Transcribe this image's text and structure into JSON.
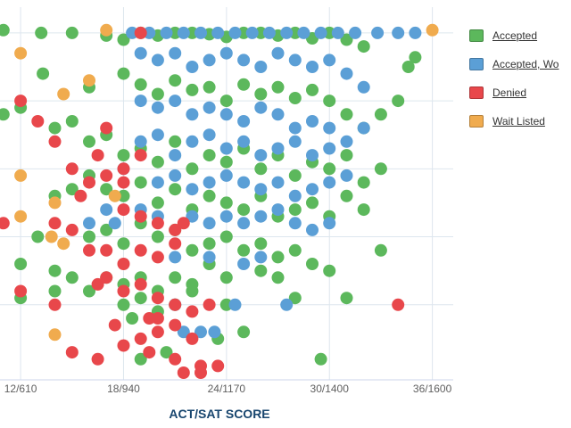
{
  "chart_data": {
    "type": "scatter",
    "title": "",
    "xlabel": "ACT/SAT SCORE",
    "ylabel": "",
    "x_ticks": [
      {
        "act": 12,
        "label": "12/610"
      },
      {
        "act": 18,
        "label": "18/940"
      },
      {
        "act": 24,
        "label": "24/1170"
      },
      {
        "act": 30,
        "label": "30/1400"
      },
      {
        "act": 36,
        "label": "36/1600"
      }
    ],
    "xlim": [
      10.8,
      36.8
    ],
    "ylim": [
      1.5,
      4.15
    ],
    "grid": true,
    "legend_position": "right",
    "series": [
      {
        "name": "Accepted",
        "color": "#5cb85c",
        "points": [
          [
            11,
            4.02
          ],
          [
            13.2,
            4.0
          ],
          [
            15,
            4.0
          ],
          [
            17,
            3.98
          ],
          [
            18,
            3.95
          ],
          [
            19,
            4.0
          ],
          [
            20,
            3.98
          ],
          [
            21,
            4.0
          ],
          [
            22,
            4.0
          ],
          [
            23,
            3.99
          ],
          [
            24,
            3.97
          ],
          [
            25,
            4.0
          ],
          [
            26,
            4.0
          ],
          [
            27,
            3.98
          ],
          [
            28,
            4.0
          ],
          [
            29,
            3.96
          ],
          [
            30,
            4.0
          ],
          [
            31,
            3.95
          ],
          [
            32,
            3.9
          ],
          [
            35,
            3.82
          ],
          [
            13.3,
            3.7
          ],
          [
            16,
            3.6
          ],
          [
            18,
            3.7
          ],
          [
            19,
            3.62
          ],
          [
            20,
            3.55
          ],
          [
            21,
            3.65
          ],
          [
            22,
            3.58
          ],
          [
            23,
            3.6
          ],
          [
            24,
            3.5
          ],
          [
            25,
            3.62
          ],
          [
            26,
            3.55
          ],
          [
            27,
            3.6
          ],
          [
            28,
            3.52
          ],
          [
            29,
            3.58
          ],
          [
            30,
            3.5
          ],
          [
            31,
            3.4
          ],
          [
            32,
            3.3
          ],
          [
            33,
            3.4
          ],
          [
            34,
            3.5
          ],
          [
            11,
            3.4
          ],
          [
            12,
            3.45
          ],
          [
            14,
            3.3
          ],
          [
            15,
            3.35
          ],
          [
            16,
            3.2
          ],
          [
            17,
            3.25
          ],
          [
            18,
            3.1
          ],
          [
            19,
            3.15
          ],
          [
            20,
            3.05
          ],
          [
            21,
            3.2
          ],
          [
            22,
            3.0
          ],
          [
            23,
            3.1
          ],
          [
            24,
            3.05
          ],
          [
            25,
            3.15
          ],
          [
            26,
            3.0
          ],
          [
            27,
            3.1
          ],
          [
            28,
            2.95
          ],
          [
            29,
            3.05
          ],
          [
            30,
            3.0
          ],
          [
            31,
            3.1
          ],
          [
            32,
            2.9
          ],
          [
            33,
            3.0
          ],
          [
            16,
            2.95
          ],
          [
            15,
            2.85
          ],
          [
            14,
            2.8
          ],
          [
            17,
            2.85
          ],
          [
            18,
            2.8
          ],
          [
            19,
            2.9
          ],
          [
            20,
            2.75
          ],
          [
            21,
            2.85
          ],
          [
            22,
            2.7
          ],
          [
            23,
            2.8
          ],
          [
            24,
            2.75
          ],
          [
            25,
            2.7
          ],
          [
            26,
            2.8
          ],
          [
            27,
            2.65
          ],
          [
            28,
            2.7
          ],
          [
            29,
            2.75
          ],
          [
            30,
            2.65
          ],
          [
            31,
            2.8
          ],
          [
            32,
            2.7
          ],
          [
            13,
            2.5
          ],
          [
            16,
            2.5
          ],
          [
            17,
            2.55
          ],
          [
            18,
            2.45
          ],
          [
            19,
            2.6
          ],
          [
            20,
            2.5
          ],
          [
            21,
            2.55
          ],
          [
            22,
            2.4
          ],
          [
            23,
            2.45
          ],
          [
            24,
            2.5
          ],
          [
            25,
            2.4
          ],
          [
            26,
            2.45
          ],
          [
            27,
            2.35
          ],
          [
            28,
            2.4
          ],
          [
            29,
            2.3
          ],
          [
            30,
            2.25
          ],
          [
            33,
            2.4
          ],
          [
            12,
            2.3
          ],
          [
            14,
            2.25
          ],
          [
            15,
            2.2
          ],
          [
            17,
            2.2
          ],
          [
            18,
            2.15
          ],
          [
            19,
            2.2
          ],
          [
            20,
            2.1
          ],
          [
            21,
            2.2
          ],
          [
            22,
            2.15
          ],
          [
            23,
            2.3
          ],
          [
            24,
            2.2
          ],
          [
            26,
            2.25
          ],
          [
            27,
            2.2
          ],
          [
            28,
            2.05
          ],
          [
            31,
            2.05
          ],
          [
            12,
            2.05
          ],
          [
            14,
            2.1
          ],
          [
            16,
            2.1
          ],
          [
            18,
            2.0
          ],
          [
            19,
            2.05
          ],
          [
            20,
            1.95
          ],
          [
            21,
            2.0
          ],
          [
            22,
            2.1
          ],
          [
            24,
            2.0
          ],
          [
            23.5,
            1.75
          ],
          [
            25,
            1.8
          ],
          [
            18.5,
            1.9
          ],
          [
            29.5,
            1.6
          ],
          [
            19,
            1.6
          ],
          [
            20.5,
            1.65
          ],
          [
            34.6,
            3.75
          ]
        ]
      },
      {
        "name": "Accepted, Wo",
        "color": "#5b9fd6",
        "points": [
          [
            18.5,
            4.0
          ],
          [
            19.5,
            4.0
          ],
          [
            20.5,
            4.0
          ],
          [
            21.5,
            4.0
          ],
          [
            22.5,
            4.0
          ],
          [
            23.5,
            4.0
          ],
          [
            24.5,
            4.0
          ],
          [
            25.5,
            4.0
          ],
          [
            26.5,
            4.0
          ],
          [
            27.5,
            4.0
          ],
          [
            28.5,
            4.0
          ],
          [
            29.5,
            4.0
          ],
          [
            30.5,
            4.0
          ],
          [
            31.5,
            4.0
          ],
          [
            32.8,
            4.0
          ],
          [
            34,
            4.0
          ],
          [
            35,
            4.0
          ],
          [
            19,
            3.85
          ],
          [
            20,
            3.8
          ],
          [
            21,
            3.85
          ],
          [
            22,
            3.75
          ],
          [
            23,
            3.8
          ],
          [
            24,
            3.85
          ],
          [
            25,
            3.8
          ],
          [
            26,
            3.75
          ],
          [
            27,
            3.85
          ],
          [
            28,
            3.8
          ],
          [
            29,
            3.75
          ],
          [
            30,
            3.8
          ],
          [
            31,
            3.7
          ],
          [
            32,
            3.6
          ],
          [
            19,
            3.5
          ],
          [
            20,
            3.45
          ],
          [
            21,
            3.5
          ],
          [
            22,
            3.4
          ],
          [
            23,
            3.45
          ],
          [
            24,
            3.4
          ],
          [
            25,
            3.35
          ],
          [
            26,
            3.45
          ],
          [
            27,
            3.4
          ],
          [
            28,
            3.3
          ],
          [
            29,
            3.35
          ],
          [
            30,
            3.3
          ],
          [
            31,
            3.2
          ],
          [
            32,
            3.3
          ],
          [
            19,
            3.2
          ],
          [
            20,
            3.25
          ],
          [
            21,
            3.1
          ],
          [
            22,
            3.2
          ],
          [
            23,
            3.25
          ],
          [
            24,
            3.15
          ],
          [
            25,
            3.2
          ],
          [
            26,
            3.1
          ],
          [
            27,
            3.15
          ],
          [
            28,
            3.2
          ],
          [
            29,
            3.1
          ],
          [
            30,
            3.15
          ],
          [
            31,
            2.95
          ],
          [
            18,
            3.0
          ],
          [
            20,
            2.9
          ],
          [
            21,
            2.95
          ],
          [
            22,
            2.85
          ],
          [
            23,
            2.9
          ],
          [
            24,
            2.95
          ],
          [
            25,
            2.9
          ],
          [
            26,
            2.85
          ],
          [
            27,
            2.9
          ],
          [
            28,
            2.8
          ],
          [
            29,
            2.85
          ],
          [
            30,
            2.9
          ],
          [
            17,
            2.7
          ],
          [
            19,
            2.7
          ],
          [
            20,
            2.65
          ],
          [
            22,
            2.65
          ],
          [
            23,
            2.6
          ],
          [
            24,
            2.65
          ],
          [
            25,
            2.6
          ],
          [
            26,
            2.65
          ],
          [
            27,
            2.7
          ],
          [
            28,
            2.6
          ],
          [
            29,
            2.55
          ],
          [
            30,
            2.6
          ],
          [
            16,
            2.6
          ],
          [
            17.5,
            2.6
          ],
          [
            21,
            2.35
          ],
          [
            23,
            2.35
          ],
          [
            25,
            2.3
          ],
          [
            26,
            2.35
          ],
          [
            21,
            2.0
          ],
          [
            24.5,
            2.0
          ],
          [
            21.5,
            1.8
          ],
          [
            27.5,
            2.0
          ],
          [
            22.5,
            1.8
          ],
          [
            23.3,
            1.8
          ]
        ]
      },
      {
        "name": "Denied",
        "color": "#e8474b",
        "points": [
          [
            19,
            4.0
          ],
          [
            12,
            3.5
          ],
          [
            13,
            3.35
          ],
          [
            14,
            3.2
          ],
          [
            15,
            3.0
          ],
          [
            15.5,
            2.8
          ],
          [
            16,
            2.9
          ],
          [
            17,
            2.95
          ],
          [
            18,
            2.9
          ],
          [
            16.5,
            3.1
          ],
          [
            17,
            3.3
          ],
          [
            18,
            3.0
          ],
          [
            19,
            3.1
          ],
          [
            18,
            2.7
          ],
          [
            19,
            2.65
          ],
          [
            20,
            2.6
          ],
          [
            21,
            2.55
          ],
          [
            17,
            2.4
          ],
          [
            18,
            2.3
          ],
          [
            19,
            2.4
          ],
          [
            20,
            2.35
          ],
          [
            21,
            2.45
          ],
          [
            11,
            2.6
          ],
          [
            14,
            2.6
          ],
          [
            15,
            2.55
          ],
          [
            16,
            2.4
          ],
          [
            17,
            2.2
          ],
          [
            18,
            2.1
          ],
          [
            19,
            2.15
          ],
          [
            20,
            2.05
          ],
          [
            21,
            2.0
          ],
          [
            22,
            1.95
          ],
          [
            23,
            2.0
          ],
          [
            20,
            1.9
          ],
          [
            21,
            1.85
          ],
          [
            22,
            1.75
          ],
          [
            19,
            1.75
          ],
          [
            20,
            1.8
          ],
          [
            17.5,
            1.85
          ],
          [
            19.5,
            1.65
          ],
          [
            21,
            1.6
          ],
          [
            22.5,
            1.55
          ],
          [
            23.5,
            1.55
          ],
          [
            21.5,
            1.5
          ],
          [
            22.5,
            1.5
          ],
          [
            15,
            1.65
          ],
          [
            16.5,
            1.6
          ],
          [
            14,
            2.0
          ],
          [
            12,
            2.1
          ],
          [
            34,
            2.0
          ],
          [
            18,
            1.7
          ],
          [
            21.5,
            2.6
          ],
          [
            16.5,
            2.15
          ],
          [
            19.5,
            1.9
          ]
        ]
      },
      {
        "name": "Wait Listed",
        "color": "#f0ab4e",
        "points": [
          [
            17,
            4.02
          ],
          [
            36,
            4.02
          ],
          [
            12,
            3.85
          ],
          [
            14.5,
            3.55
          ],
          [
            16,
            3.65
          ],
          [
            12,
            2.95
          ],
          [
            14,
            2.75
          ],
          [
            12,
            2.65
          ],
          [
            14.5,
            2.45
          ],
          [
            14,
            1.78
          ],
          [
            17.5,
            2.8
          ],
          [
            13.8,
            2.5
          ]
        ]
      }
    ]
  },
  "colors": {
    "grid": "#dde6ee",
    "axis_line": "#ccd6eb",
    "tick_text": "#606060",
    "axis_title": "#17456e"
  }
}
